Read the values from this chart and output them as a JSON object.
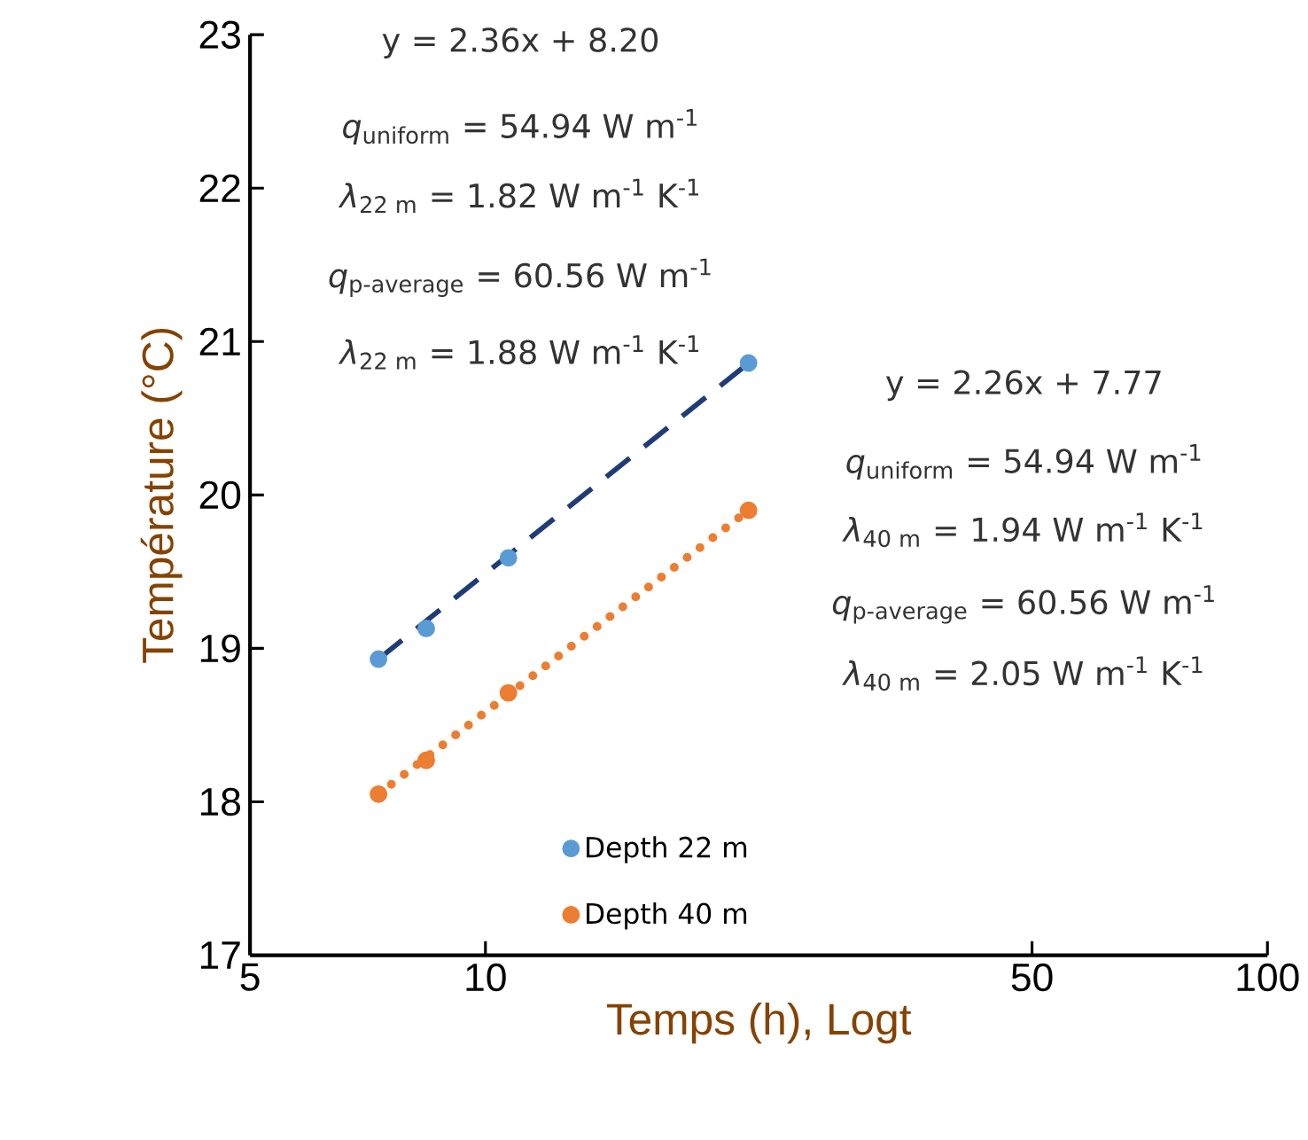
{
  "chart_data": {
    "type": "scatter",
    "xlabel": "Temps (h), Logt",
    "ylabel": "Température (°C)",
    "xlim": [
      5,
      100
    ],
    "ylim": [
      17,
      23
    ],
    "xticks": [
      5,
      10,
      50,
      100
    ],
    "yticks": [
      17,
      18,
      19,
      20,
      21,
      22,
      23
    ],
    "log": "x",
    "legend": "bottom",
    "series": [
      {
        "name": "Depth 22 m",
        "marker": "circle",
        "color": "#5b9bd5",
        "x": [
          7.3,
          8.4,
          10.7,
          21.7
        ],
        "values": [
          18.93,
          19.13,
          19.59,
          20.86
        ]
      },
      {
        "name": "Depth 40 m",
        "marker": "circle",
        "color": "#ed7d31",
        "x": [
          7.3,
          8.4,
          10.7,
          21.7
        ],
        "values": [
          18.05,
          18.27,
          18.71,
          19.9
        ]
      },
      {
        "type": "line",
        "color": "#1f3c78",
        "line_style": "dashed",
        "x": [
          7.3,
          21.7
        ],
        "values": [
          18.93,
          20.86
        ]
      },
      {
        "type": "line",
        "color": "#ed7d31",
        "line_style": "dotted",
        "x": [
          7.3,
          21.7
        ],
        "values": [
          18.05,
          19.9
        ]
      }
    ],
    "annotations": [
      "y = 2.36x + 8.20",
      "*q*$_{uniform}$ = 54.94 W m$^{-1}$",
      "*λ*$_{22 m}$ = 1.82 W m$^{-1}$ K$^{-1}$",
      "*q*$_{p-average}$ = 60.56 W m$^{-1}$",
      "*λ*$_{22 m}$ = 1.88 W m$^{-1}$ K$^{-1}$",
      "y = 2.26x + 7.77",
      "*q*$_{uniform}$ = 54.94 W m$^{-1}$",
      "*λ*$_{40 m}$ = 1.94 W m$^{-1}$ K$^{-1}$",
      "*q*$_{p-average}$ = 60.56 W m$^{-1}$",
      "*λ*$_{40 m}$ = 2.05 W m$^{-1}$ K$^{-1}$"
    ]
  }
}
